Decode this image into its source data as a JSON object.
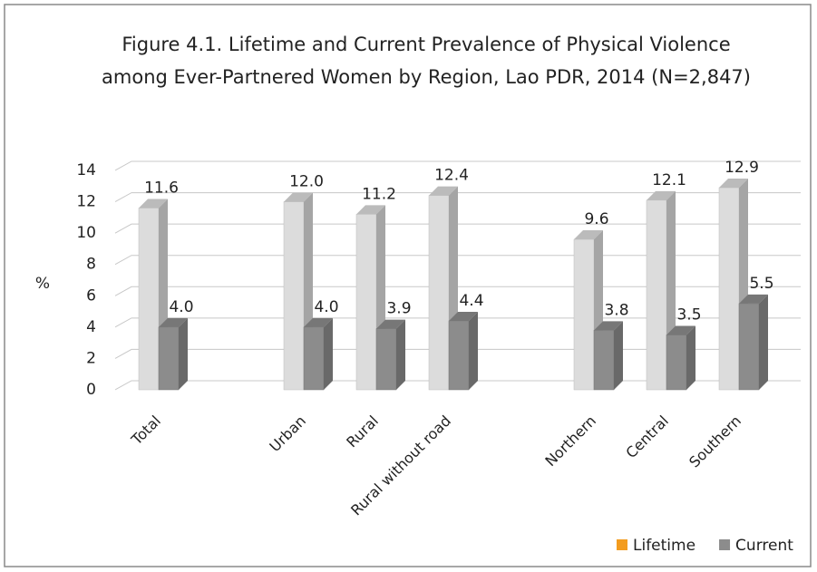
{
  "chart_data": {
    "type": "bar3d",
    "title": [
      "Figure 4.1. Lifetime and Current Prevalence of Physical Violence",
      "among Ever-Partnered Women by Region, Lao PDR, 2014  (N=2,847)"
    ],
    "y_label": "%",
    "categories": [
      "Total",
      null,
      "Urban",
      "Rural",
      "Rural without road",
      null,
      "Northern",
      "Central",
      "Southern"
    ],
    "series": [
      {
        "name": "Lifetime",
        "color": "#dcdcdc",
        "legend_color": "#f39c1f",
        "values": [
          11.6,
          null,
          12.0,
          11.2,
          12.4,
          null,
          9.6,
          12.1,
          12.9
        ],
        "value_labels": [
          "11.6",
          null,
          "12.0",
          "11.2",
          "12.4",
          null,
          "9.6",
          "12.1",
          "12.9"
        ]
      },
      {
        "name": "Current",
        "color": "#8c8c8c",
        "legend_color": "#8c8c8c",
        "values": [
          4.0,
          null,
          4.0,
          3.9,
          4.4,
          null,
          3.8,
          3.5,
          5.5
        ],
        "value_labels": [
          "4.0",
          null,
          "4.0",
          "3.9",
          "4.4",
          null,
          "3.8",
          "3.5",
          "5.5"
        ]
      }
    ],
    "ylim": [
      0,
      14
    ],
    "yticks": [
      0,
      2,
      4,
      6,
      8,
      10,
      12,
      14
    ],
    "grid": true,
    "legend": "bottom-right"
  }
}
